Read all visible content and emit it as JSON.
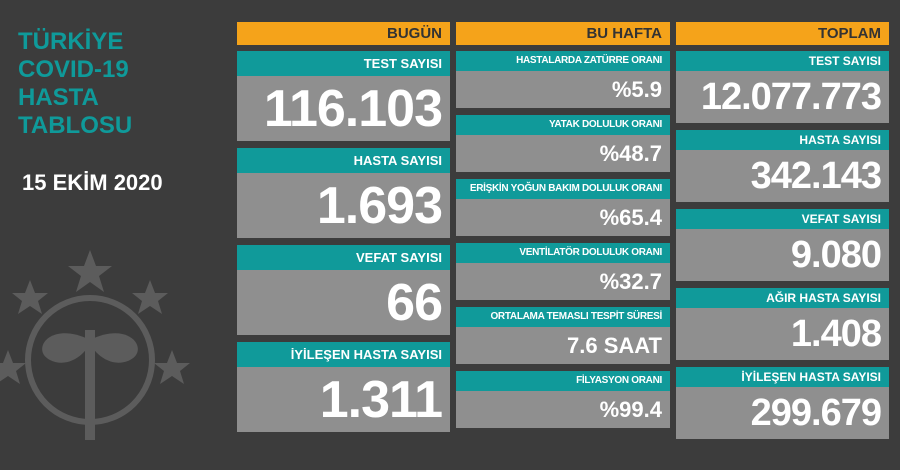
{
  "title_lines": [
    "TÜRKİYE",
    "COVID-19",
    "HASTA",
    "TABLOSU"
  ],
  "date": "15 EKİM 2020",
  "today": {
    "header": "BUGÜN",
    "cards": [
      {
        "label": "TEST SAYISI",
        "value": "116.103"
      },
      {
        "label": "HASTA SAYISI",
        "value": "1.693"
      },
      {
        "label": "VEFAT SAYISI",
        "value": "66"
      },
      {
        "label": "İYİLEŞEN HASTA SAYISI",
        "value": "1.311"
      }
    ]
  },
  "week": {
    "header": "BU HAFTA",
    "cards": [
      {
        "label": "HASTALARDA ZATÜRRE ORANI",
        "value": "%5.9"
      },
      {
        "label": "YATAK DOLULUK ORANI",
        "value": "%48.7"
      },
      {
        "label": "ERİŞKİN YOĞUN BAKIM DOLULUK ORANI",
        "value": "%65.4"
      },
      {
        "label": "VENTİLATÖR DOLULUK ORANI",
        "value": "%32.7"
      },
      {
        "label": "ORTALAMA TEMASLI TESPİT SÜRESİ",
        "value": "7.6 SAAT"
      },
      {
        "label": "FİLYASYON ORANI",
        "value": "%99.4"
      }
    ]
  },
  "total": {
    "header": "TOPLAM",
    "cards": [
      {
        "label": "TEST SAYISI",
        "value": "12.077.773"
      },
      {
        "label": "HASTA SAYISI",
        "value": "342.143"
      },
      {
        "label": "VEFAT SAYISI",
        "value": "9.080"
      },
      {
        "label": "AĞIR HASTA SAYISI",
        "value": "1.408"
      },
      {
        "label": "İYİLEŞEN HASTA SAYISI",
        "value": "299.679"
      }
    ]
  },
  "colors": {
    "background": "#3c3c3c",
    "accent_teal": "#109a9a",
    "header_orange": "#f5a31a",
    "card_gray": "#8f8f8f"
  },
  "icons": {
    "emblem": "ministry-emblem-icon"
  }
}
